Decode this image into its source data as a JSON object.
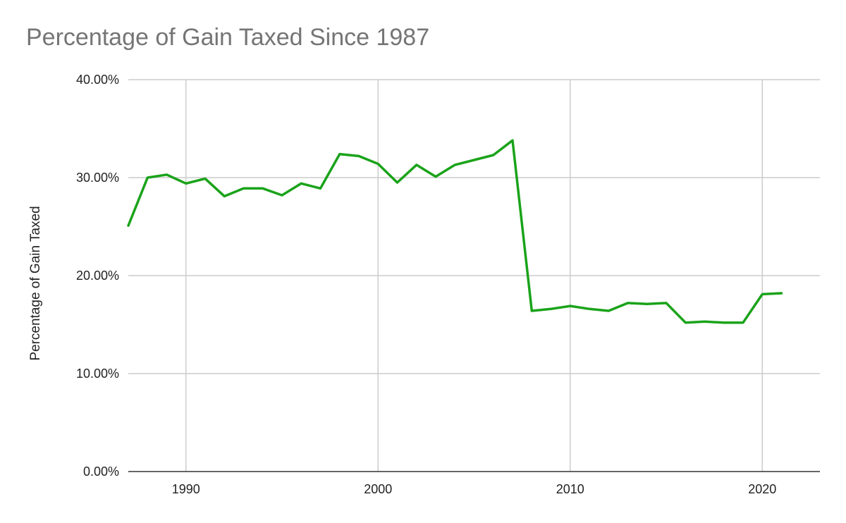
{
  "chart_data": {
    "type": "line",
    "title": "Percentage of Gain Taxed Since 1987",
    "xlabel": "",
    "ylabel": "Percentage of Gain Taxed",
    "xlim": [
      1987,
      2023
    ],
    "ylim": [
      0,
      0.4
    ],
    "x_ticks": [
      1990,
      2000,
      2010,
      2020
    ],
    "y_ticks": [
      0,
      0.1,
      0.2,
      0.3,
      0.4
    ],
    "y_tick_labels": [
      "0.00%",
      "10.00%",
      "20.00%",
      "30.00%",
      "40.00%"
    ],
    "grid": true,
    "series": [
      {
        "color": "#1aa31a",
        "x": [
          1987,
          1988,
          1989,
          1990,
          1991,
          1992,
          1993,
          1994,
          1995,
          1996,
          1997,
          1998,
          1999,
          2000,
          2001,
          2002,
          2003,
          2004,
          2005,
          2006,
          2007,
          2008,
          2009,
          2010,
          2011,
          2012,
          2013,
          2014,
          2015,
          2016,
          2017,
          2018,
          2019,
          2020,
          2021
        ],
        "values": [
          0.251,
          0.3,
          0.303,
          0.294,
          0.299,
          0.281,
          0.289,
          0.289,
          0.282,
          0.294,
          0.289,
          0.324,
          0.322,
          0.314,
          0.295,
          0.313,
          0.301,
          0.313,
          0.318,
          0.323,
          0.338,
          0.164,
          0.166,
          0.169,
          0.166,
          0.164,
          0.172,
          0.171,
          0.172,
          0.152,
          0.153,
          0.152,
          0.152,
          0.181,
          0.182
        ]
      }
    ]
  }
}
